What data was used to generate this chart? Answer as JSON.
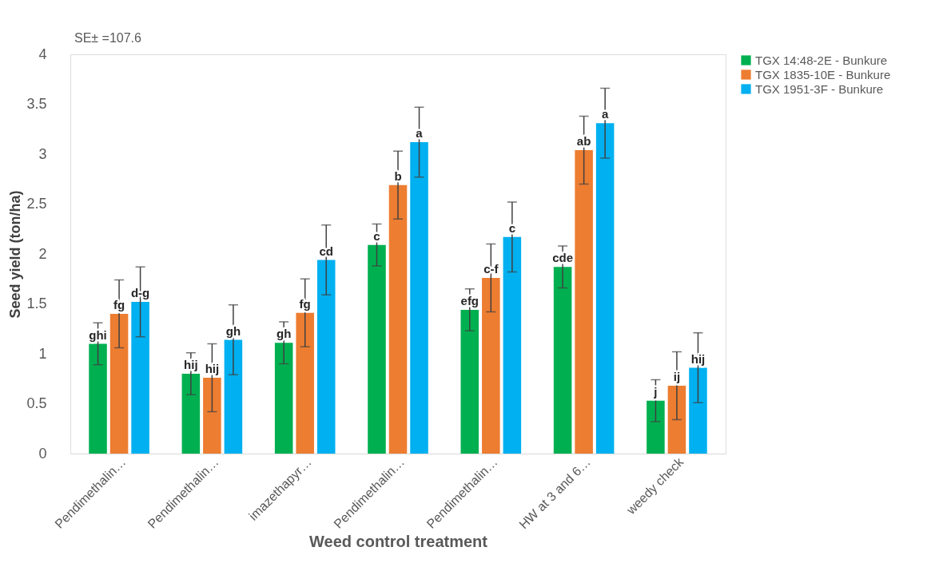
{
  "chart_data": {
    "type": "bar",
    "xlabel": "Weed control  treatment",
    "ylabel": "Seed yield (ton/ha)",
    "categories": [
      "Pendimethalin…",
      "Pendimethalin…",
      "imazethapyr…",
      "Pendimethalin…",
      "Pendimethalin…",
      "HW at 3 and 6…",
      "weedy check"
    ],
    "series": [
      {
        "name": "TGX 14:48-2E - Bunkure",
        "color": "#00b050",
        "values": [
          1.1,
          0.8,
          1.11,
          2.09,
          1.44,
          1.87,
          0.53
        ],
        "errors": [
          0.21,
          0.21,
          0.21,
          0.21,
          0.21,
          0.21,
          0.21
        ],
        "value_labels": [
          "ghi",
          "hij",
          "gh",
          "c",
          "efg",
          "cde",
          "j"
        ]
      },
      {
        "name": "TGX 1835-10E - Bunkure",
        "color": "#ed7d31",
        "values": [
          1.4,
          0.76,
          1.41,
          2.69,
          1.76,
          3.04,
          0.68
        ],
        "errors": [
          0.34,
          0.34,
          0.34,
          0.34,
          0.34,
          0.34,
          0.34
        ],
        "value_labels": [
          "fg",
          "hij",
          "fg",
          "b",
          "c-f",
          "ab",
          "ij"
        ]
      },
      {
        "name": "TGX 1951-3F - Bunkure",
        "color": "#00b0f0",
        "values": [
          1.52,
          1.14,
          1.94,
          3.12,
          2.17,
          3.31,
          0.86
        ],
        "errors": [
          0.35,
          0.35,
          0.35,
          0.35,
          0.35,
          0.35,
          0.35
        ],
        "value_labels": [
          "d-g",
          "gh",
          "cd",
          "a",
          "c",
          "a",
          "hij"
        ]
      }
    ],
    "ylim": [
      0,
      4
    ],
    "yticks": [
      0,
      0.5,
      1,
      1.5,
      2,
      2.5,
      3,
      3.5,
      4
    ],
    "grid": false,
    "legend": "right",
    "annotations": [
      "SE± =107.6"
    ]
  }
}
